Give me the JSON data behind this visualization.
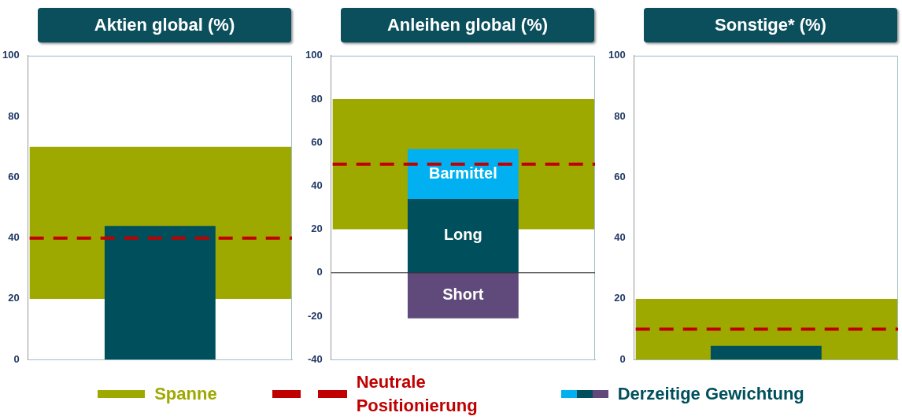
{
  "chart_data": [
    {
      "type": "bar",
      "title": "Aktien global (%)",
      "categories": [
        null
      ],
      "series": [
        {
          "name": "Derzeitige Gewichtung",
          "color": "#004f5c",
          "values": [
            44
          ]
        }
      ],
      "ylim": [
        0,
        100
      ],
      "yticks": [
        0,
        20,
        40,
        60,
        80,
        100
      ],
      "tick_labels": "y",
      "legend": "bottom",
      "bands": [
        {
          "axis": "y",
          "from": 20,
          "to": 70,
          "label": "Spanne",
          "color": "#9ea900"
        }
      ],
      "ref_lines": [
        {
          "axis": "y",
          "value": 40,
          "label": "Neutrale Positionierung",
          "color": "#c00000",
          "line_style": "dashed"
        }
      ]
    },
    {
      "type": "bar",
      "title": "Anleihen global (%)",
      "categories": [
        null
      ],
      "stacked": true,
      "series": [
        {
          "name": "Short",
          "color": "#604a7b",
          "values": [
            -21
          ]
        },
        {
          "name": "Long",
          "color": "#004f5c",
          "values": [
            34
          ]
        },
        {
          "name": "Barmittel",
          "color": "#00b0f0",
          "values": [
            23
          ]
        }
      ],
      "ylim": [
        -40,
        100
      ],
      "yticks": [
        -40,
        -20,
        0,
        20,
        40,
        60,
        80,
        100
      ],
      "tick_labels": "y",
      "bands": [
        {
          "axis": "y",
          "from": 20,
          "to": 80,
          "color": "#9ea900"
        }
      ],
      "ref_lines": [
        {
          "axis": "y",
          "value": 50,
          "color": "#c00000",
          "line_style": "dashed"
        }
      ]
    },
    {
      "type": "bar",
      "title": "Sonstige* (%)",
      "categories": [
        null
      ],
      "series": [
        {
          "color": "#004f5c",
          "values": [
            4.5
          ]
        }
      ],
      "ylim": [
        0,
        100
      ],
      "yticks": [
        0,
        20,
        40,
        60,
        80,
        100
      ],
      "tick_labels": "y",
      "bands": [
        {
          "axis": "y",
          "from": 0,
          "to": 20,
          "color": "#9ea900"
        }
      ],
      "ref_lines": [
        {
          "axis": "y",
          "value": 10,
          "color": "#c00000",
          "line_style": "dashed"
        }
      ]
    }
  ]
}
